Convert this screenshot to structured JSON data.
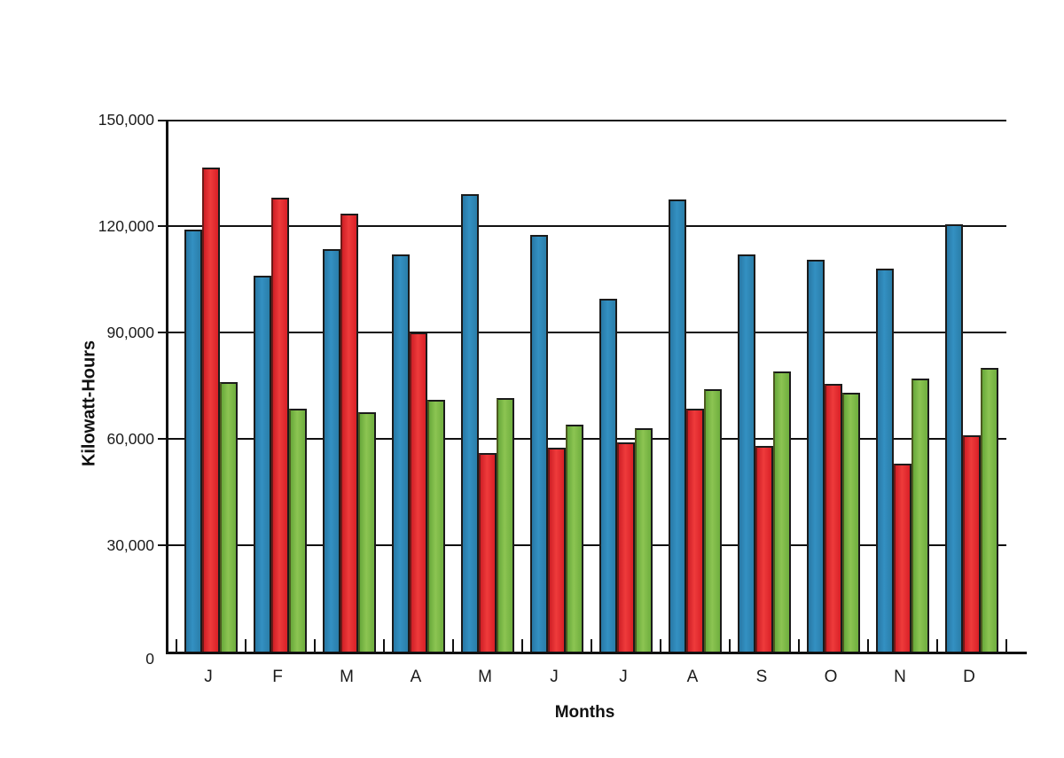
{
  "chart_data": {
    "type": "bar",
    "title": "",
    "xlabel": "Months",
    "ylabel": "Kilowatt-Hours",
    "categories": [
      "J",
      "F",
      "M",
      "A",
      "M",
      "J",
      "J",
      "A",
      "S",
      "O",
      "N",
      "D"
    ],
    "series": [
      {
        "name": "blue",
        "color": "#2E86B5",
        "values": [
          119000,
          106000,
          113500,
          112000,
          129000,
          117500,
          99500,
          127500,
          112000,
          110500,
          108000,
          120500
        ]
      },
      {
        "name": "red",
        "color": "#E2222A",
        "values": [
          136500,
          128000,
          123500,
          90000,
          56000,
          57500,
          59000,
          68500,
          58000,
          75500,
          53000,
          61000
        ]
      },
      {
        "name": "green",
        "color": "#76B843",
        "values": [
          76000,
          68500,
          67500,
          71000,
          71500,
          64000,
          63000,
          74000,
          79000,
          73000,
          77000,
          80000
        ]
      }
    ],
    "ylim": [
      0,
      150000
    ],
    "ytick_interval": 30000,
    "yticks": [
      {
        "value": 0,
        "label": "0"
      },
      {
        "value": 30000,
        "label": "30,000"
      },
      {
        "value": 60000,
        "label": "60,000"
      },
      {
        "value": 90000,
        "label": "90,000"
      },
      {
        "value": 120000,
        "label": "120,000"
      },
      {
        "value": 150000,
        "label": "150,000"
      }
    ],
    "grid": true,
    "legend": "none",
    "axis_color": "#111111",
    "background": "#FFFFFF"
  }
}
